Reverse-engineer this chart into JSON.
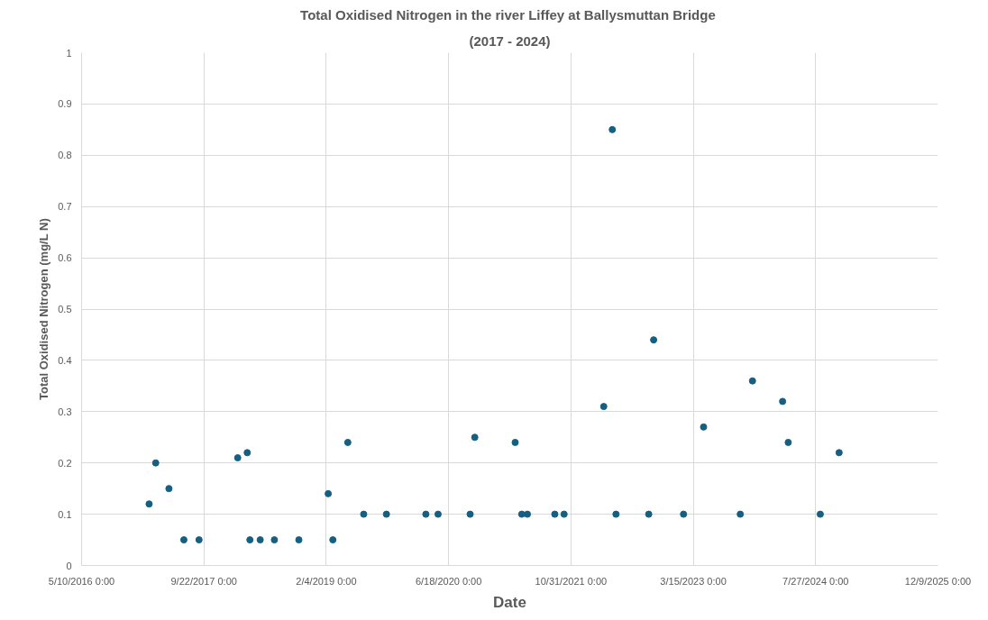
{
  "chart_data": {
    "type": "scatter",
    "title": "Total Oxidised Nitrogen  in the river Liffey at Ballysmuttan Bridge",
    "subtitle": "(2017 - 2024)",
    "xlabel": "Date",
    "ylabel": "Total Oxidised Nitrogen (mg/L N)",
    "x": [
      "2017-02-10",
      "2017-03-09",
      "2017-05-02",
      "2017-07-02",
      "2017-09-02",
      "2018-02-07",
      "2018-03-18",
      "2018-03-29",
      "2018-05-10",
      "2018-07-07",
      "2018-10-15",
      "2019-02-12",
      "2019-03-03",
      "2019-05-03",
      "2019-07-07",
      "2019-10-08",
      "2020-03-17",
      "2020-05-06",
      "2020-09-14",
      "2020-10-03",
      "2021-03-17",
      "2021-04-13",
      "2021-05-06",
      "2021-08-26",
      "2021-10-03",
      "2022-03-14",
      "2022-04-18",
      "2022-05-03",
      "2022-09-14",
      "2022-10-04",
      "2023-02-03",
      "2023-04-26",
      "2023-09-23",
      "2023-11-12",
      "2024-03-14",
      "2024-04-06",
      "2024-08-15",
      "2024-10-31"
    ],
    "series": [
      {
        "color": "#156082",
        "values": [
          0.12,
          0.2,
          0.15,
          0.05,
          0.05,
          0.21,
          0.22,
          0.05,
          0.05,
          0.05,
          0.05,
          0.14,
          0.05,
          0.24,
          0.1,
          0.1,
          0.1,
          0.1,
          0.1,
          0.25,
          0.24,
          0.1,
          0.1,
          0.1,
          0.1,
          0.31,
          0.85,
          0.1,
          0.1,
          0.44,
          0.1,
          0.27,
          0.1,
          0.36,
          0.32,
          0.24,
          0.1,
          0.22
        ]
      }
    ],
    "xlim": [
      "2016-05-10",
      "2025-12-09"
    ],
    "xticks": [
      {
        "value": "2016-05-10",
        "label": "5/10/2016 0:00"
      },
      {
        "value": "2017-09-22",
        "label": "9/22/2017 0:00"
      },
      {
        "value": "2019-02-04",
        "label": "2/4/2019 0:00"
      },
      {
        "value": "2020-06-18",
        "label": "6/18/2020 0:00"
      },
      {
        "value": "2021-10-31",
        "label": "10/31/2021 0:00"
      },
      {
        "value": "2023-03-15",
        "label": "3/15/2023 0:00"
      },
      {
        "value": "2024-07-27",
        "label": "7/27/2024 0:00"
      },
      {
        "value": "2025-12-09",
        "label": "12/9/2025 0:00"
      }
    ],
    "ylim": [
      0,
      1
    ],
    "yticks": [
      0,
      0.1,
      0.2,
      0.3,
      0.4,
      0.5,
      0.6,
      0.7,
      0.8,
      0.9,
      1
    ],
    "grid": true,
    "marker": "circle"
  }
}
